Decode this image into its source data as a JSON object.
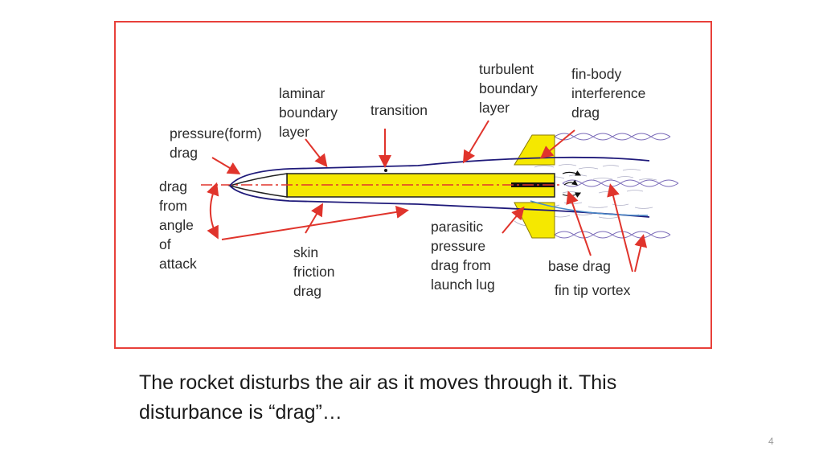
{
  "colors": {
    "frame": "#e8403a",
    "arrow": "#e0342c",
    "rocket_body": "#f5e800",
    "outline": "#1f1a7a",
    "flow": "#6a5aa8"
  },
  "labels": {
    "turbulent": "turbulent\nboundary\nlayer",
    "fin_body": "fin-body\ninterference\ndrag",
    "laminar": "laminar\nboundary\nlayer",
    "transition": "transition",
    "pressure": "pressure(form)\ndrag",
    "angle": "drag\nfrom\nangle\nof\nattack",
    "skin": "skin\nfriction\ndrag",
    "parasitic": "parasitic\npressure\ndrag from\nlaunch lug",
    "base": "base drag",
    "fin_tip": "fin tip vortex"
  },
  "caption": "The rocket disturbs the air as it moves through it.  This\ndisturbance is “drag”…",
  "page_number": "4"
}
